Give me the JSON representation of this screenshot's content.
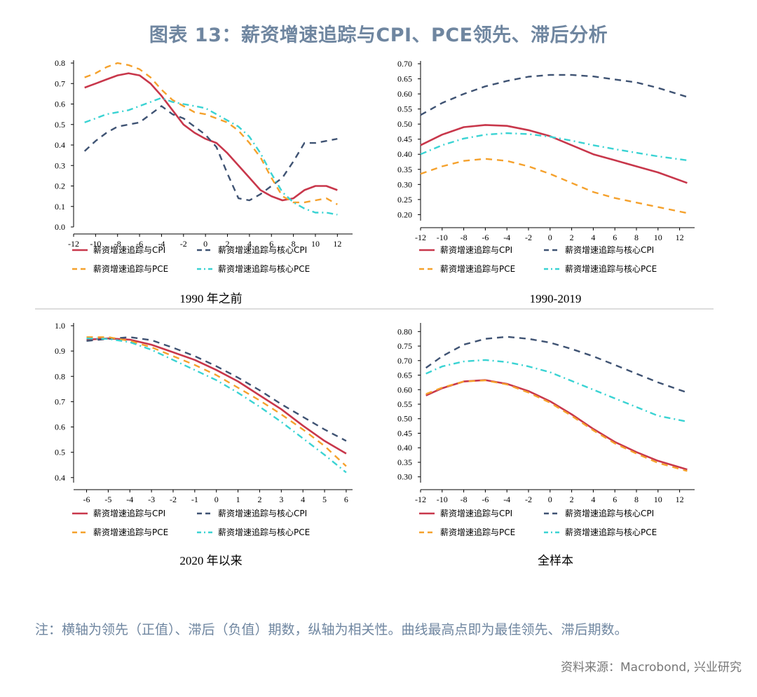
{
  "title": "图表 13：薪资增速追踪与CPI、PCE领先、滞后分析",
  "note": "注：横轴为领先（正值）、滞后（负值）期数，纵轴为相关性。曲线最高点即为最佳领先、滞后期数。",
  "source": "资料来源：Macrobond, 兴业研究",
  "colors": {
    "cpi": "#c8374b",
    "core_cpi": "#3f5373",
    "pce": "#f5a12c",
    "core_pce": "#3ad3d3"
  },
  "chart_data": [
    {
      "type": "line",
      "caption": "1990 年之前",
      "xlim": [
        -12,
        13
      ],
      "xticks": [
        -12,
        -10,
        -8,
        -6,
        -4,
        -2,
        0,
        2,
        4,
        6,
        8,
        10,
        12
      ],
      "ylim": [
        0.0,
        0.8
      ],
      "yticks": [
        "0.0",
        "0.1",
        "0.2",
        "0.3",
        "0.4",
        "0.5",
        "0.6",
        "0.7",
        "0.8"
      ],
      "series": [
        {
          "name": "薪资增速追踪与CPI",
          "key": "cpi",
          "x": [
            -11,
            -10,
            -9,
            -8,
            -7,
            -6,
            -5,
            -4,
            -3,
            -2,
            -1,
            0,
            1,
            2,
            3,
            4,
            5,
            6,
            7,
            8,
            9,
            10,
            11,
            12
          ],
          "values": [
            0.68,
            0.7,
            0.72,
            0.74,
            0.75,
            0.74,
            0.7,
            0.64,
            0.57,
            0.5,
            0.46,
            0.43,
            0.41,
            0.36,
            0.3,
            0.24,
            0.18,
            0.15,
            0.13,
            0.14,
            0.18,
            0.2,
            0.2,
            0.18
          ]
        },
        {
          "name": "薪资增速追踪与核心CPI",
          "key": "core_cpi",
          "x": [
            -11,
            -10,
            -9,
            -8,
            -7,
            -6,
            -5,
            -4,
            -3,
            -2,
            -1,
            0,
            1,
            2,
            3,
            4,
            5,
            6,
            7,
            8,
            9,
            10,
            11,
            12
          ],
          "values": [
            0.37,
            0.42,
            0.46,
            0.49,
            0.5,
            0.51,
            0.55,
            0.59,
            0.55,
            0.53,
            0.49,
            0.45,
            0.39,
            0.26,
            0.14,
            0.13,
            0.16,
            0.2,
            0.24,
            0.32,
            0.41,
            0.41,
            0.42,
            0.43
          ]
        },
        {
          "name": "薪资增速追踪与PCE",
          "key": "pce",
          "x": [
            -11,
            -10,
            -9,
            -8,
            -7,
            -6,
            -5,
            -4,
            -3,
            -2,
            -1,
            0,
            1,
            2,
            3,
            4,
            5,
            6,
            7,
            8,
            9,
            10,
            11,
            12
          ],
          "values": [
            0.73,
            0.75,
            0.78,
            0.8,
            0.79,
            0.77,
            0.73,
            0.67,
            0.62,
            0.59,
            0.56,
            0.55,
            0.53,
            0.51,
            0.47,
            0.41,
            0.34,
            0.24,
            0.15,
            0.12,
            0.12,
            0.13,
            0.14,
            0.11
          ]
        },
        {
          "name": "薪资增速追踪与核心PCE",
          "key": "core_pce",
          "x": [
            -11,
            -10,
            -9,
            -8,
            -7,
            -6,
            -5,
            -4,
            -3,
            -2,
            -1,
            0,
            1,
            2,
            3,
            4,
            5,
            6,
            7,
            8,
            9,
            10,
            11,
            12
          ],
          "values": [
            0.51,
            0.53,
            0.55,
            0.56,
            0.57,
            0.59,
            0.61,
            0.63,
            0.61,
            0.6,
            0.59,
            0.58,
            0.55,
            0.52,
            0.49,
            0.44,
            0.36,
            0.26,
            0.17,
            0.12,
            0.09,
            0.07,
            0.07,
            0.06
          ]
        }
      ]
    },
    {
      "type": "line",
      "caption": "1990-2019",
      "xlim": [
        -12,
        13
      ],
      "xticks": [
        -12,
        -10,
        -8,
        -6,
        -4,
        -2,
        0,
        2,
        4,
        6,
        8,
        10,
        12
      ],
      "ylim": [
        0.18,
        0.7
      ],
      "yticks": [
        "0.20",
        "0.25",
        "0.30",
        "0.35",
        "0.40",
        "0.45",
        "0.50",
        "0.55",
        "0.60",
        "0.65",
        "0.70"
      ],
      "series": [
        {
          "name": "薪资增速追踪与CPI",
          "key": "cpi",
          "x": [
            -12,
            -10,
            -8,
            -6,
            -4,
            -2,
            0,
            2,
            4,
            6,
            8,
            10,
            12.7
          ],
          "values": [
            0.43,
            0.465,
            0.49,
            0.497,
            0.494,
            0.48,
            0.46,
            0.43,
            0.4,
            0.38,
            0.36,
            0.34,
            0.305
          ]
        },
        {
          "name": "薪资增速追踪与核心CPI",
          "key": "core_cpi",
          "x": [
            -12,
            -10,
            -8,
            -6,
            -4,
            -2,
            0,
            2,
            4,
            6,
            8,
            10,
            12.7
          ],
          "values": [
            0.53,
            0.57,
            0.6,
            0.625,
            0.643,
            0.657,
            0.663,
            0.663,
            0.658,
            0.648,
            0.638,
            0.62,
            0.59
          ]
        },
        {
          "name": "薪资增速追踪与PCE",
          "key": "pce",
          "x": [
            -12,
            -10,
            -8,
            -6,
            -4,
            -2,
            0,
            2,
            4,
            6,
            8,
            10,
            12.7
          ],
          "values": [
            0.335,
            0.36,
            0.378,
            0.385,
            0.378,
            0.36,
            0.335,
            0.305,
            0.275,
            0.255,
            0.24,
            0.225,
            0.205
          ]
        },
        {
          "name": "薪资增速追踪与核心PCE",
          "key": "core_pce",
          "x": [
            -12,
            -10,
            -8,
            -6,
            -4,
            -2,
            0,
            2,
            4,
            6,
            8,
            10,
            12.7
          ],
          "values": [
            0.4,
            0.43,
            0.452,
            0.465,
            0.47,
            0.467,
            0.458,
            0.445,
            0.43,
            0.417,
            0.405,
            0.393,
            0.38
          ]
        }
      ]
    },
    {
      "type": "line",
      "caption": "2020 年以来",
      "xlim": [
        -6.6,
        6.1
      ],
      "xticks": [
        -6,
        -5,
        -4,
        -3,
        -2,
        -1,
        0,
        1,
        2,
        3,
        4,
        5,
        6
      ],
      "ylim": [
        0.38,
        1.0
      ],
      "yticks": [
        "0.4",
        "0.5",
        "0.6",
        "0.7",
        "0.8",
        "0.9",
        "1.0"
      ],
      "series": [
        {
          "name": "薪资增速追踪与CPI",
          "key": "cpi",
          "x": [
            -6,
            -5,
            -4,
            -3,
            -2,
            -1,
            0,
            1,
            2,
            3,
            4,
            5,
            6
          ],
          "values": [
            0.945,
            0.95,
            0.945,
            0.925,
            0.895,
            0.865,
            0.825,
            0.78,
            0.725,
            0.67,
            0.605,
            0.545,
            0.495
          ]
        },
        {
          "name": "薪资增速追踪与核心CPI",
          "key": "core_cpi",
          "x": [
            -6,
            -5,
            -4,
            -3,
            -2,
            -1,
            0,
            1,
            2,
            3,
            4,
            5,
            6
          ],
          "values": [
            0.94,
            0.948,
            0.955,
            0.943,
            0.913,
            0.88,
            0.84,
            0.795,
            0.745,
            0.69,
            0.64,
            0.59,
            0.545
          ]
        },
        {
          "name": "薪资增速追踪与PCE",
          "key": "pce",
          "x": [
            -6,
            -5,
            -4,
            -3,
            -2,
            -1,
            0,
            1,
            2,
            3,
            4,
            5,
            6
          ],
          "values": [
            0.955,
            0.955,
            0.94,
            0.915,
            0.88,
            0.845,
            0.805,
            0.755,
            0.705,
            0.65,
            0.59,
            0.525,
            0.445
          ]
        },
        {
          "name": "薪资增速追踪与核心PCE",
          "key": "core_pce",
          "x": [
            -6,
            -5,
            -4,
            -3,
            -2,
            -1,
            0,
            1,
            2,
            3,
            4,
            5,
            6
          ],
          "values": [
            0.95,
            0.948,
            0.935,
            0.905,
            0.865,
            0.825,
            0.785,
            0.735,
            0.68,
            0.62,
            0.555,
            0.49,
            0.42
          ]
        }
      ]
    },
    {
      "type": "line",
      "caption": "全样本",
      "xlim": [
        -12,
        13
      ],
      "xticks": [
        -12,
        -10,
        -8,
        -6,
        -4,
        -2,
        0,
        2,
        4,
        6,
        8,
        10,
        12
      ],
      "ylim": [
        0.28,
        0.82
      ],
      "yticks": [
        "0.30",
        "0.35",
        "0.40",
        "0.45",
        "0.50",
        "0.55",
        "0.60",
        "0.65",
        "0.70",
        "0.75",
        "0.80"
      ],
      "series": [
        {
          "name": "薪资增速追踪与CPI",
          "key": "cpi",
          "x": [
            -11.5,
            -10,
            -8,
            -6,
            -4,
            -2,
            0,
            2,
            4,
            6,
            8,
            10,
            12.7
          ],
          "values": [
            0.58,
            0.605,
            0.628,
            0.633,
            0.62,
            0.595,
            0.56,
            0.515,
            0.465,
            0.42,
            0.385,
            0.355,
            0.325
          ]
        },
        {
          "name": "薪资增速追踪与核心CPI",
          "key": "core_cpi",
          "x": [
            -11.5,
            -10,
            -8,
            -6,
            -4,
            -2,
            0,
            2,
            4,
            6,
            8,
            10,
            12.7
          ],
          "values": [
            0.675,
            0.715,
            0.755,
            0.775,
            0.782,
            0.775,
            0.762,
            0.74,
            0.715,
            0.685,
            0.655,
            0.625,
            0.59
          ]
        },
        {
          "name": "薪资增速追踪与PCE",
          "key": "pce",
          "x": [
            -11.5,
            -10,
            -8,
            -6,
            -4,
            -2,
            0,
            2,
            4,
            6,
            8,
            10,
            12.7
          ],
          "values": [
            0.585,
            0.607,
            0.628,
            0.632,
            0.618,
            0.59,
            0.555,
            0.51,
            0.46,
            0.415,
            0.38,
            0.348,
            0.32
          ]
        },
        {
          "name": "薪资增速追踪与核心PCE",
          "key": "core_pce",
          "x": [
            -11.5,
            -10,
            -8,
            -6,
            -4,
            -2,
            0,
            2,
            4,
            6,
            8,
            10,
            12.7
          ],
          "values": [
            0.655,
            0.68,
            0.697,
            0.702,
            0.695,
            0.68,
            0.66,
            0.63,
            0.6,
            0.57,
            0.54,
            0.51,
            0.49
          ]
        }
      ]
    }
  ]
}
